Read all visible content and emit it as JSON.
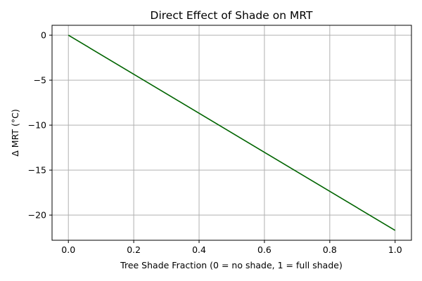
{
  "chart_data": {
    "type": "line",
    "title": "Direct Effect of Shade on MRT",
    "xlabel": "Tree Shade Fraction (0 = no shade, 1 = full shade)",
    "ylabel": "Δ MRT (°C)",
    "xlim": [
      -0.05,
      1.05
    ],
    "ylim": [
      -22.8,
      1.1
    ],
    "xticks": [
      0.0,
      0.2,
      0.4,
      0.6,
      0.8,
      1.0
    ],
    "xtick_labels": [
      "0.0",
      "0.2",
      "0.4",
      "0.6",
      "0.8",
      "1.0"
    ],
    "yticks": [
      0,
      -5,
      -10,
      -15,
      -20
    ],
    "ytick_labels": [
      "0",
      "−5",
      "−10",
      "−15",
      "−20"
    ],
    "grid": true,
    "legend": "none",
    "series": [
      {
        "color": "#006400",
        "x": [
          0.0,
          1.0
        ],
        "y": [
          0.0,
          -21.7
        ]
      }
    ]
  }
}
